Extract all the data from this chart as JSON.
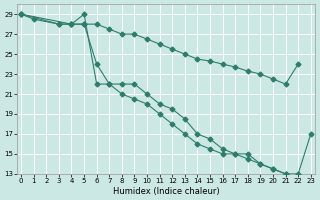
{
  "xlabel": "Humidex (Indice chaleur)",
  "bg_color": "#cce8e4",
  "grid_color": "#bbdbd6",
  "line_color": "#2e7d6c",
  "xlim": [
    -0.3,
    23.3
  ],
  "ylim": [
    13,
    30
  ],
  "xticks": [
    0,
    1,
    2,
    3,
    4,
    5,
    6,
    7,
    8,
    9,
    10,
    11,
    12,
    13,
    14,
    15,
    16,
    17,
    18,
    19,
    20,
    21,
    22,
    23
  ],
  "yticks": [
    13,
    15,
    17,
    19,
    21,
    23,
    25,
    27,
    29
  ],
  "line_top_x": [
    0,
    4,
    5,
    6,
    7,
    8,
    9,
    10,
    11,
    12,
    13,
    14,
    15,
    16,
    17,
    18,
    19,
    20,
    21,
    22
  ],
  "line_top_y": [
    29,
    28,
    28,
    28,
    27.5,
    27,
    27,
    26.5,
    26,
    25.5,
    25,
    24.5,
    24.3,
    24,
    23.7,
    23.3,
    23,
    22.5,
    22,
    24
  ],
  "line_mid_x": [
    0,
    1,
    3,
    4,
    5,
    6,
    7,
    8,
    9,
    10,
    11,
    12,
    13,
    14,
    15,
    16,
    17,
    18,
    19,
    20,
    21
  ],
  "line_mid_y": [
    29,
    28.5,
    28,
    28,
    29,
    22,
    22,
    21,
    20.5,
    20,
    19,
    18,
    17,
    16,
    15.5,
    15,
    15,
    14.5,
    14,
    13.5,
    13
  ],
  "line_bot_x": [
    0,
    3,
    4,
    5,
    6,
    7,
    8,
    9,
    10,
    11,
    12,
    13,
    14,
    15,
    16,
    17,
    18,
    19,
    20,
    21,
    22,
    23
  ],
  "line_bot_y": [
    29,
    28,
    28,
    28,
    24,
    22,
    22,
    22,
    21,
    20,
    19.5,
    18.5,
    17,
    16.5,
    15.5,
    15,
    15,
    14,
    13.5,
    13,
    13,
    17
  ],
  "marker": "D",
  "marker_size": 2.5,
  "linewidth": 0.8,
  "tick_fontsize": 5,
  "xlabel_fontsize": 6
}
